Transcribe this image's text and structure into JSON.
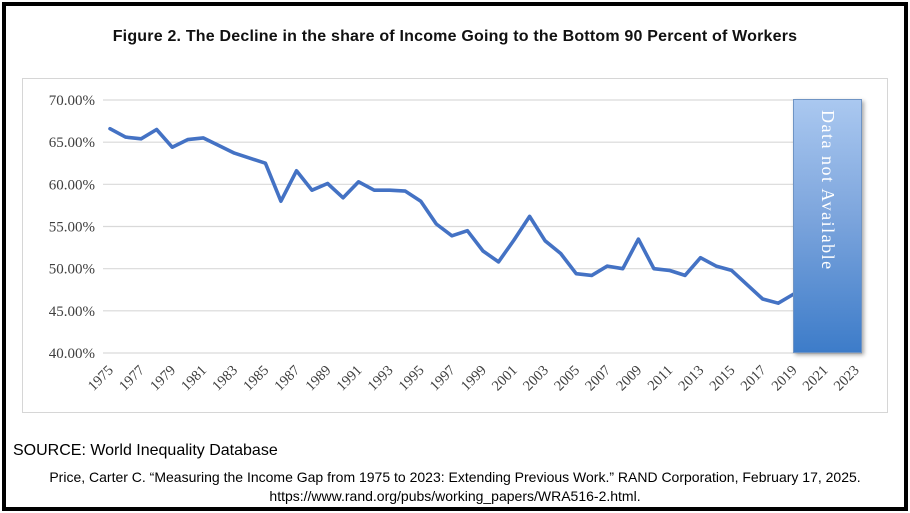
{
  "title": "Figure 2. The Decline in the share of Income Going to the Bottom 90 Percent of Workers",
  "overlay": {
    "label": "Data not Available"
  },
  "footer": {
    "source": "SOURCE: World Inequality Database",
    "citation_line1": "Price, Carter C. “Measuring the Income Gap from 1975 to 2023: Extending Previous Work.” RAND Corporation, February 17, 2025.",
    "citation_line2": "https://www.rand.org/pubs/working_papers/WRA516-2.html."
  },
  "chart_data": {
    "type": "line",
    "title": "Figure 2. The Decline in the share of Income Going to the Bottom 90 Percent of Workers",
    "x": [
      1975,
      1976,
      1977,
      1978,
      1979,
      1980,
      1981,
      1982,
      1983,
      1984,
      1985,
      1986,
      1987,
      1988,
      1989,
      1990,
      1991,
      1992,
      1993,
      1994,
      1995,
      1996,
      1997,
      1998,
      1999,
      2000,
      2001,
      2002,
      2003,
      2004,
      2005,
      2006,
      2007,
      2008,
      2009,
      2010,
      2011,
      2012,
      2013,
      2014,
      2015,
      2016,
      2017,
      2018,
      2019
    ],
    "values": [
      66.6,
      65.6,
      65.4,
      66.5,
      64.4,
      65.3,
      65.5,
      64.6,
      63.7,
      63.1,
      62.5,
      58.0,
      61.6,
      59.3,
      60.1,
      58.4,
      60.3,
      59.3,
      59.3,
      59.2,
      58.0,
      55.3,
      53.9,
      54.5,
      52.1,
      50.8,
      53.4,
      56.2,
      53.3,
      51.8,
      49.4,
      49.2,
      50.3,
      50.0,
      53.5,
      50.0,
      49.8,
      49.2,
      51.3,
      50.3,
      49.8,
      48.1,
      46.4,
      45.9,
      47.0
    ],
    "series_name": "Share of income going to the bottom 90 percent of workers",
    "xlabel": "",
    "ylabel": "",
    "ylim": [
      40,
      70
    ],
    "y_ticks": [
      70,
      65,
      60,
      55,
      50,
      45,
      40
    ],
    "y_tick_labels": [
      "70.00%",
      "65.00%",
      "60.00%",
      "55.00%",
      "50.00%",
      "45.00%",
      "40.00%"
    ],
    "x_tick_years": [
      1975,
      1977,
      1979,
      1981,
      1983,
      1985,
      1987,
      1989,
      1991,
      1993,
      1995,
      1997,
      1999,
      2001,
      2003,
      2005,
      2007,
      2009,
      2011,
      2013,
      2015,
      2017,
      2019,
      2021,
      2023
    ],
    "grid": "horizontal",
    "legend": "none",
    "line_color": "#4472C4",
    "annotation": {
      "label": "Data not Available",
      "x_range": [
        2019.5,
        2023.5
      ]
    }
  }
}
